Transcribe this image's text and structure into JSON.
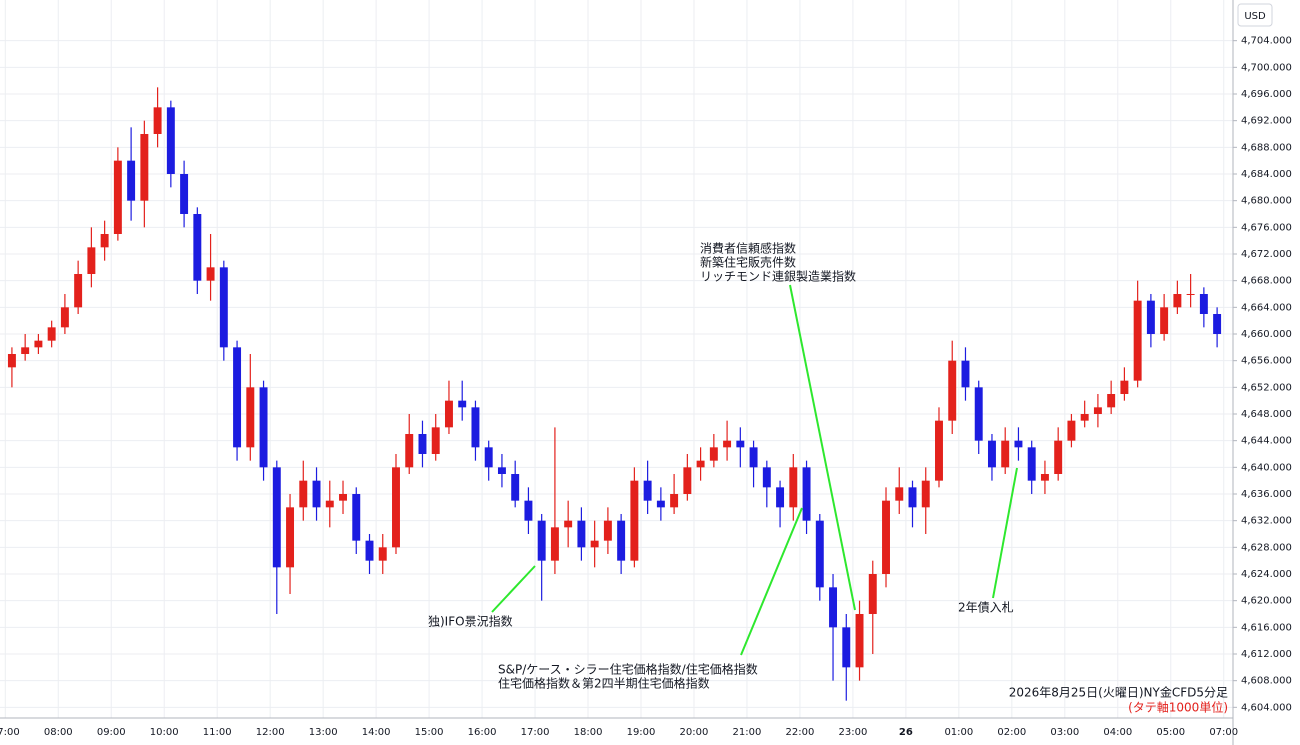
{
  "chart_data": {
    "type": "candlestick",
    "currency": "USD",
    "open": [
      4655,
      4657,
      4658,
      4659,
      4661,
      4664,
      4669,
      4673,
      4675,
      4686,
      4680,
      4690,
      4694,
      4684,
      4678,
      4668,
      4670,
      4658,
      4643,
      4652,
      4640,
      4625,
      4634,
      4638,
      4634,
      4635,
      4636,
      4629,
      4626,
      4628,
      4640,
      4645,
      4642,
      4646,
      4650,
      4649,
      4643,
      4640,
      4639,
      4635,
      4632,
      4626,
      4631,
      4632,
      4628,
      4629,
      4632,
      4626,
      4638,
      4635,
      4634,
      4636,
      4640,
      4641,
      4643,
      4644,
      4643,
      4640,
      4637,
      4634,
      4640,
      4632,
      4622,
      4616,
      4610,
      4618,
      4624,
      4635,
      4637,
      4634,
      4638,
      4647,
      4656,
      4652,
      4644,
      4640,
      4644,
      4643,
      4638,
      4639,
      4644,
      4647,
      4648,
      4649,
      4651,
      4653,
      4665,
      4660,
      4664,
      4666,
      4666,
      4663
    ],
    "high": [
      4658,
      4660,
      4660,
      4662,
      4666,
      4671,
      4676,
      4677,
      4688,
      4691,
      4692,
      4697,
      4695,
      4686,
      4679,
      4675,
      4671,
      4659,
      4657,
      4653,
      4641,
      4636,
      4641,
      4640,
      4638,
      4638,
      4637,
      4630,
      4630,
      4642,
      4648,
      4647,
      4648,
      4653,
      4653,
      4650,
      4644,
      4642,
      4641,
      4637,
      4633,
      4646,
      4635,
      4634,
      4632,
      4634,
      4633,
      4640,
      4641,
      4637,
      4639,
      4642,
      4643,
      4645,
      4647,
      4646,
      4644,
      4641,
      4638,
      4642,
      4641,
      4633,
      4624,
      4618,
      4620,
      4626,
      4637,
      4640,
      4638,
      4640,
      4649,
      4659,
      4658,
      4653,
      4645,
      4646,
      4646,
      4644,
      4641,
      4646,
      4648,
      4650,
      4651,
      4653,
      4655,
      4668,
      4666,
      4666,
      4668,
      4669,
      4667,
      4664
    ],
    "low": [
      4652,
      4656,
      4657,
      4658,
      4660,
      4663,
      4667,
      4671,
      4674,
      4677,
      4676,
      4688,
      4682,
      4676,
      4666,
      4665,
      4656,
      4641,
      4641,
      4638,
      4618,
      4621,
      4632,
      4632,
      4631,
      4633,
      4627,
      4624,
      4624,
      4627,
      4639,
      4640,
      4641,
      4645,
      4647,
      4641,
      4638,
      4637,
      4634,
      4630,
      4620,
      4624,
      4628,
      4626,
      4625,
      4627,
      4624,
      4625,
      4633,
      4632,
      4633,
      4635,
      4638,
      4640,
      4641,
      4640,
      4637,
      4634,
      4631,
      4632,
      4630,
      4620,
      4608,
      4605,
      4608,
      4612,
      4622,
      4633,
      4631,
      4630,
      4637,
      4645,
      4650,
      4642,
      4638,
      4639,
      4641,
      4636,
      4636,
      4638,
      4643,
      4646,
      4646,
      4648,
      4650,
      4652,
      4658,
      4659,
      4663,
      4664,
      4661,
      4658
    ],
    "close": [
      4657,
      4658,
      4659,
      4661,
      4664,
      4669,
      4673,
      4675,
      4686,
      4680,
      4690,
      4694,
      4684,
      4678,
      4668,
      4670,
      4658,
      4643,
      4652,
      4640,
      4625,
      4634,
      4638,
      4634,
      4635,
      4636,
      4629,
      4626,
      4628,
      4640,
      4645,
      4642,
      4646,
      4650,
      4649,
      4643,
      4640,
      4639,
      4635,
      4632,
      4626,
      4631,
      4632,
      4628,
      4629,
      4632,
      4626,
      4638,
      4635,
      4634,
      4636,
      4640,
      4641,
      4643,
      4644,
      4643,
      4640,
      4637,
      4634,
      4640,
      4632,
      4622,
      4616,
      4610,
      4618,
      4624,
      4635,
      4637,
      4634,
      4638,
      4647,
      4656,
      4652,
      4644,
      4640,
      4644,
      4643,
      4638,
      4639,
      4644,
      4647,
      4648,
      4649,
      4651,
      4653,
      4665,
      4660,
      4664,
      4666,
      4666,
      4663,
      4660
    ],
    "up_color": "#e3211c",
    "down_color": "#1c1ce0",
    "grid": true,
    "xlim": [
      -0.4,
      92.7
    ],
    "xticks": [
      {
        "value": 0,
        "label": "07:00"
      },
      {
        "value": 4,
        "label": "08:00"
      },
      {
        "value": 8,
        "label": "09:00"
      },
      {
        "value": 12,
        "label": "10:00"
      },
      {
        "value": 16,
        "label": "11:00"
      },
      {
        "value": 20,
        "label": "12:00"
      },
      {
        "value": 24,
        "label": "13:00"
      },
      {
        "value": 28,
        "label": "14:00"
      },
      {
        "value": 32,
        "label": "15:00"
      },
      {
        "value": 36,
        "label": "16:00"
      },
      {
        "value": 40,
        "label": "17:00"
      },
      {
        "value": 44,
        "label": "18:00"
      },
      {
        "value": 48,
        "label": "19:00"
      },
      {
        "value": 52,
        "label": "20:00"
      },
      {
        "value": 56,
        "label": "21:00"
      },
      {
        "value": 60,
        "label": "22:00"
      },
      {
        "value": 64,
        "label": "23:00"
      },
      {
        "value": 68,
        "label": "26"
      },
      {
        "value": 72,
        "label": "01:00"
      },
      {
        "value": 76,
        "label": "02:00"
      },
      {
        "value": 80,
        "label": "03:00"
      },
      {
        "value": 84,
        "label": "04:00"
      },
      {
        "value": 88,
        "label": "05:00"
      },
      {
        "value": 92,
        "label": "07:00"
      }
    ],
    "ylim": [
      4602.4,
      4710.1
    ],
    "yticks": [
      {
        "value": 4604,
        "label": "4,604.000"
      },
      {
        "value": 4608,
        "label": "4,608.000"
      },
      {
        "value": 4612,
        "label": "4,612.000"
      },
      {
        "value": 4616,
        "label": "4,616.000"
      },
      {
        "value": 4620,
        "label": "4,620.000"
      },
      {
        "value": 4624,
        "label": "4,624.000"
      },
      {
        "value": 4628,
        "label": "4,628.000"
      },
      {
        "value": 4632,
        "label": "4,632.000"
      },
      {
        "value": 4636,
        "label": "4,636.000"
      },
      {
        "value": 4640,
        "label": "4,640.000"
      },
      {
        "value": 4644,
        "label": "4,644.000"
      },
      {
        "value": 4648,
        "label": "4,648.000"
      },
      {
        "value": 4652,
        "label": "4,652.000"
      },
      {
        "value": 4656,
        "label": "4,656.000"
      },
      {
        "value": 4660,
        "label": "4,660.000"
      },
      {
        "value": 4664,
        "label": "4,664.000"
      },
      {
        "value": 4668,
        "label": "4,668.000"
      },
      {
        "value": 4672,
        "label": "4,672.000"
      },
      {
        "value": 4676,
        "label": "4,676.000"
      },
      {
        "value": 4680,
        "label": "4,680.000"
      },
      {
        "value": 4684,
        "label": "4,684.000"
      },
      {
        "value": 4688,
        "label": "4,688.000"
      },
      {
        "value": 4692,
        "label": "4,692.000"
      },
      {
        "value": 4696,
        "label": "4,696.000"
      },
      {
        "value": 4700,
        "label": "4,700.000"
      },
      {
        "value": 4704,
        "label": "4,704.000"
      }
    ],
    "annotations": [
      [
        "独)IFO景況指数"
      ],
      [
        "S&P/ケース・シラー住宅価格指数/住宅価格指数",
        "住宅価格指数＆第2四半期住宅価格指数"
      ],
      [
        "消費者信頼感指数",
        "新築住宅販売件数",
        "リッチモンド連銀製造業指数"
      ],
      [
        "2年債入札"
      ]
    ],
    "caption": "2026年8月25日(火曜日)NY金CFD5分足",
    "caption_note": "(タテ軸1000単位)"
  }
}
